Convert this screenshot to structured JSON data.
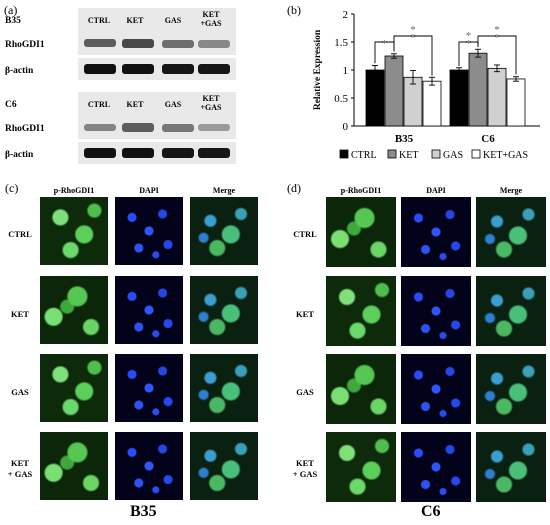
{
  "panel_a": {
    "label": "(a)",
    "blots": [
      {
        "cell_line": "B35",
        "lanes": [
          "CTRL",
          "KET",
          "GAS",
          "KET\n+GAS"
        ],
        "rows": [
          "RhoGDI1",
          "β-actin"
        ]
      },
      {
        "cell_line": "C6",
        "lanes": [
          "CTRL",
          "KET",
          "GAS",
          "KET\n+GAS"
        ],
        "rows": [
          "RhoGDI1",
          "β-actin"
        ]
      }
    ]
  },
  "panel_b": {
    "label": "(b)"
  },
  "chart_data": {
    "type": "bar",
    "ylabel": "Relative Expression",
    "ylim": [
      0,
      2
    ],
    "yticks": [
      "0",
      "0.5",
      "1",
      "1.5",
      "2"
    ],
    "categories": [
      "B35",
      "C6"
    ],
    "series": [
      {
        "name": "CTRL",
        "color": "#000000",
        "values": [
          1.0,
          1.0
        ],
        "errors": [
          0.08,
          0.04
        ]
      },
      {
        "name": "KET",
        "color": "#8c8c8c",
        "values": [
          1.25,
          1.3
        ],
        "errors": [
          0.04,
          0.07
        ]
      },
      {
        "name": "GAS",
        "color": "#d0d0d0",
        "values": [
          0.87,
          1.03
        ],
        "errors": [
          0.12,
          0.06
        ]
      },
      {
        "name": "KET+GAS",
        "color": "#ffffff",
        "values": [
          0.8,
          0.84
        ],
        "errors": [
          0.07,
          0.04
        ]
      }
    ],
    "significance": [
      {
        "group": "B35",
        "label": "*"
      },
      {
        "group": "B35",
        "label": "**"
      },
      {
        "group": "C6",
        "label": "**"
      },
      {
        "group": "C6",
        "label": "**"
      }
    ],
    "grid": false,
    "legend": "bottom"
  },
  "panel_c": {
    "label": "(c)",
    "cell_line": "B35",
    "columns": [
      "p-RhoGDI1",
      "DAPI",
      "Merge"
    ],
    "rows": [
      "CTRL",
      "KET",
      "GAS",
      "KET\n+ GAS"
    ]
  },
  "panel_d": {
    "label": "(d)",
    "cell_line": "C6",
    "columns": [
      "p-RhoGDI1",
      "DAPI",
      "Merge"
    ],
    "rows": [
      "CTRL",
      "KET",
      "GAS",
      "KET\n+ GAS"
    ]
  }
}
